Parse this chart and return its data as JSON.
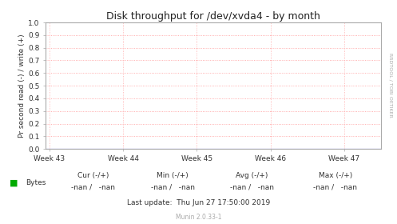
{
  "title": "Disk throughput for /dev/xvda4 - by month",
  "ylabel": "Pr second read (-) / write (+)",
  "background_color": "#ffffff",
  "plot_bg_color": "#ffffff",
  "grid_color": "#ff9999",
  "border_color": "#aaaaaa",
  "x_tick_labels": [
    "Week 43",
    "Week 44",
    "Week 45",
    "Week 46",
    "Week 47"
  ],
  "x_tick_positions": [
    0,
    1,
    2,
    3,
    4
  ],
  "ylim": [
    0.0,
    1.0
  ],
  "xlim": [
    -0.05,
    4.5
  ],
  "y_ticks": [
    0.0,
    0.1,
    0.2,
    0.3,
    0.4,
    0.5,
    0.6,
    0.7,
    0.8,
    0.9,
    1.0
  ],
  "title_fontsize": 9,
  "tick_fontsize": 6.5,
  "ylabel_fontsize": 6.5,
  "legend_label": "Bytes",
  "legend_color": "#00aa00",
  "cur_label": "Cur (-/+)",
  "min_label": "Min (-/+)",
  "avg_label": "Avg (-/+)",
  "max_label": "Max (-/+)",
  "cur_val": "-nan /   -nan",
  "min_val": "-nan /   -nan",
  "avg_val": "-nan /   -nan",
  "max_val": "-nan /   -nan",
  "footer_text": "Last update:  Thu Jun 27 17:50:00 2019",
  "munin_text": "Munin 2.0.33-1",
  "rrdtool_text": "RRDTOOL / TOBI OETIKER",
  "line_color": "#0000dd",
  "vertical_line_color": "#ffaaaa",
  "arrow_color": "#aaaaff"
}
